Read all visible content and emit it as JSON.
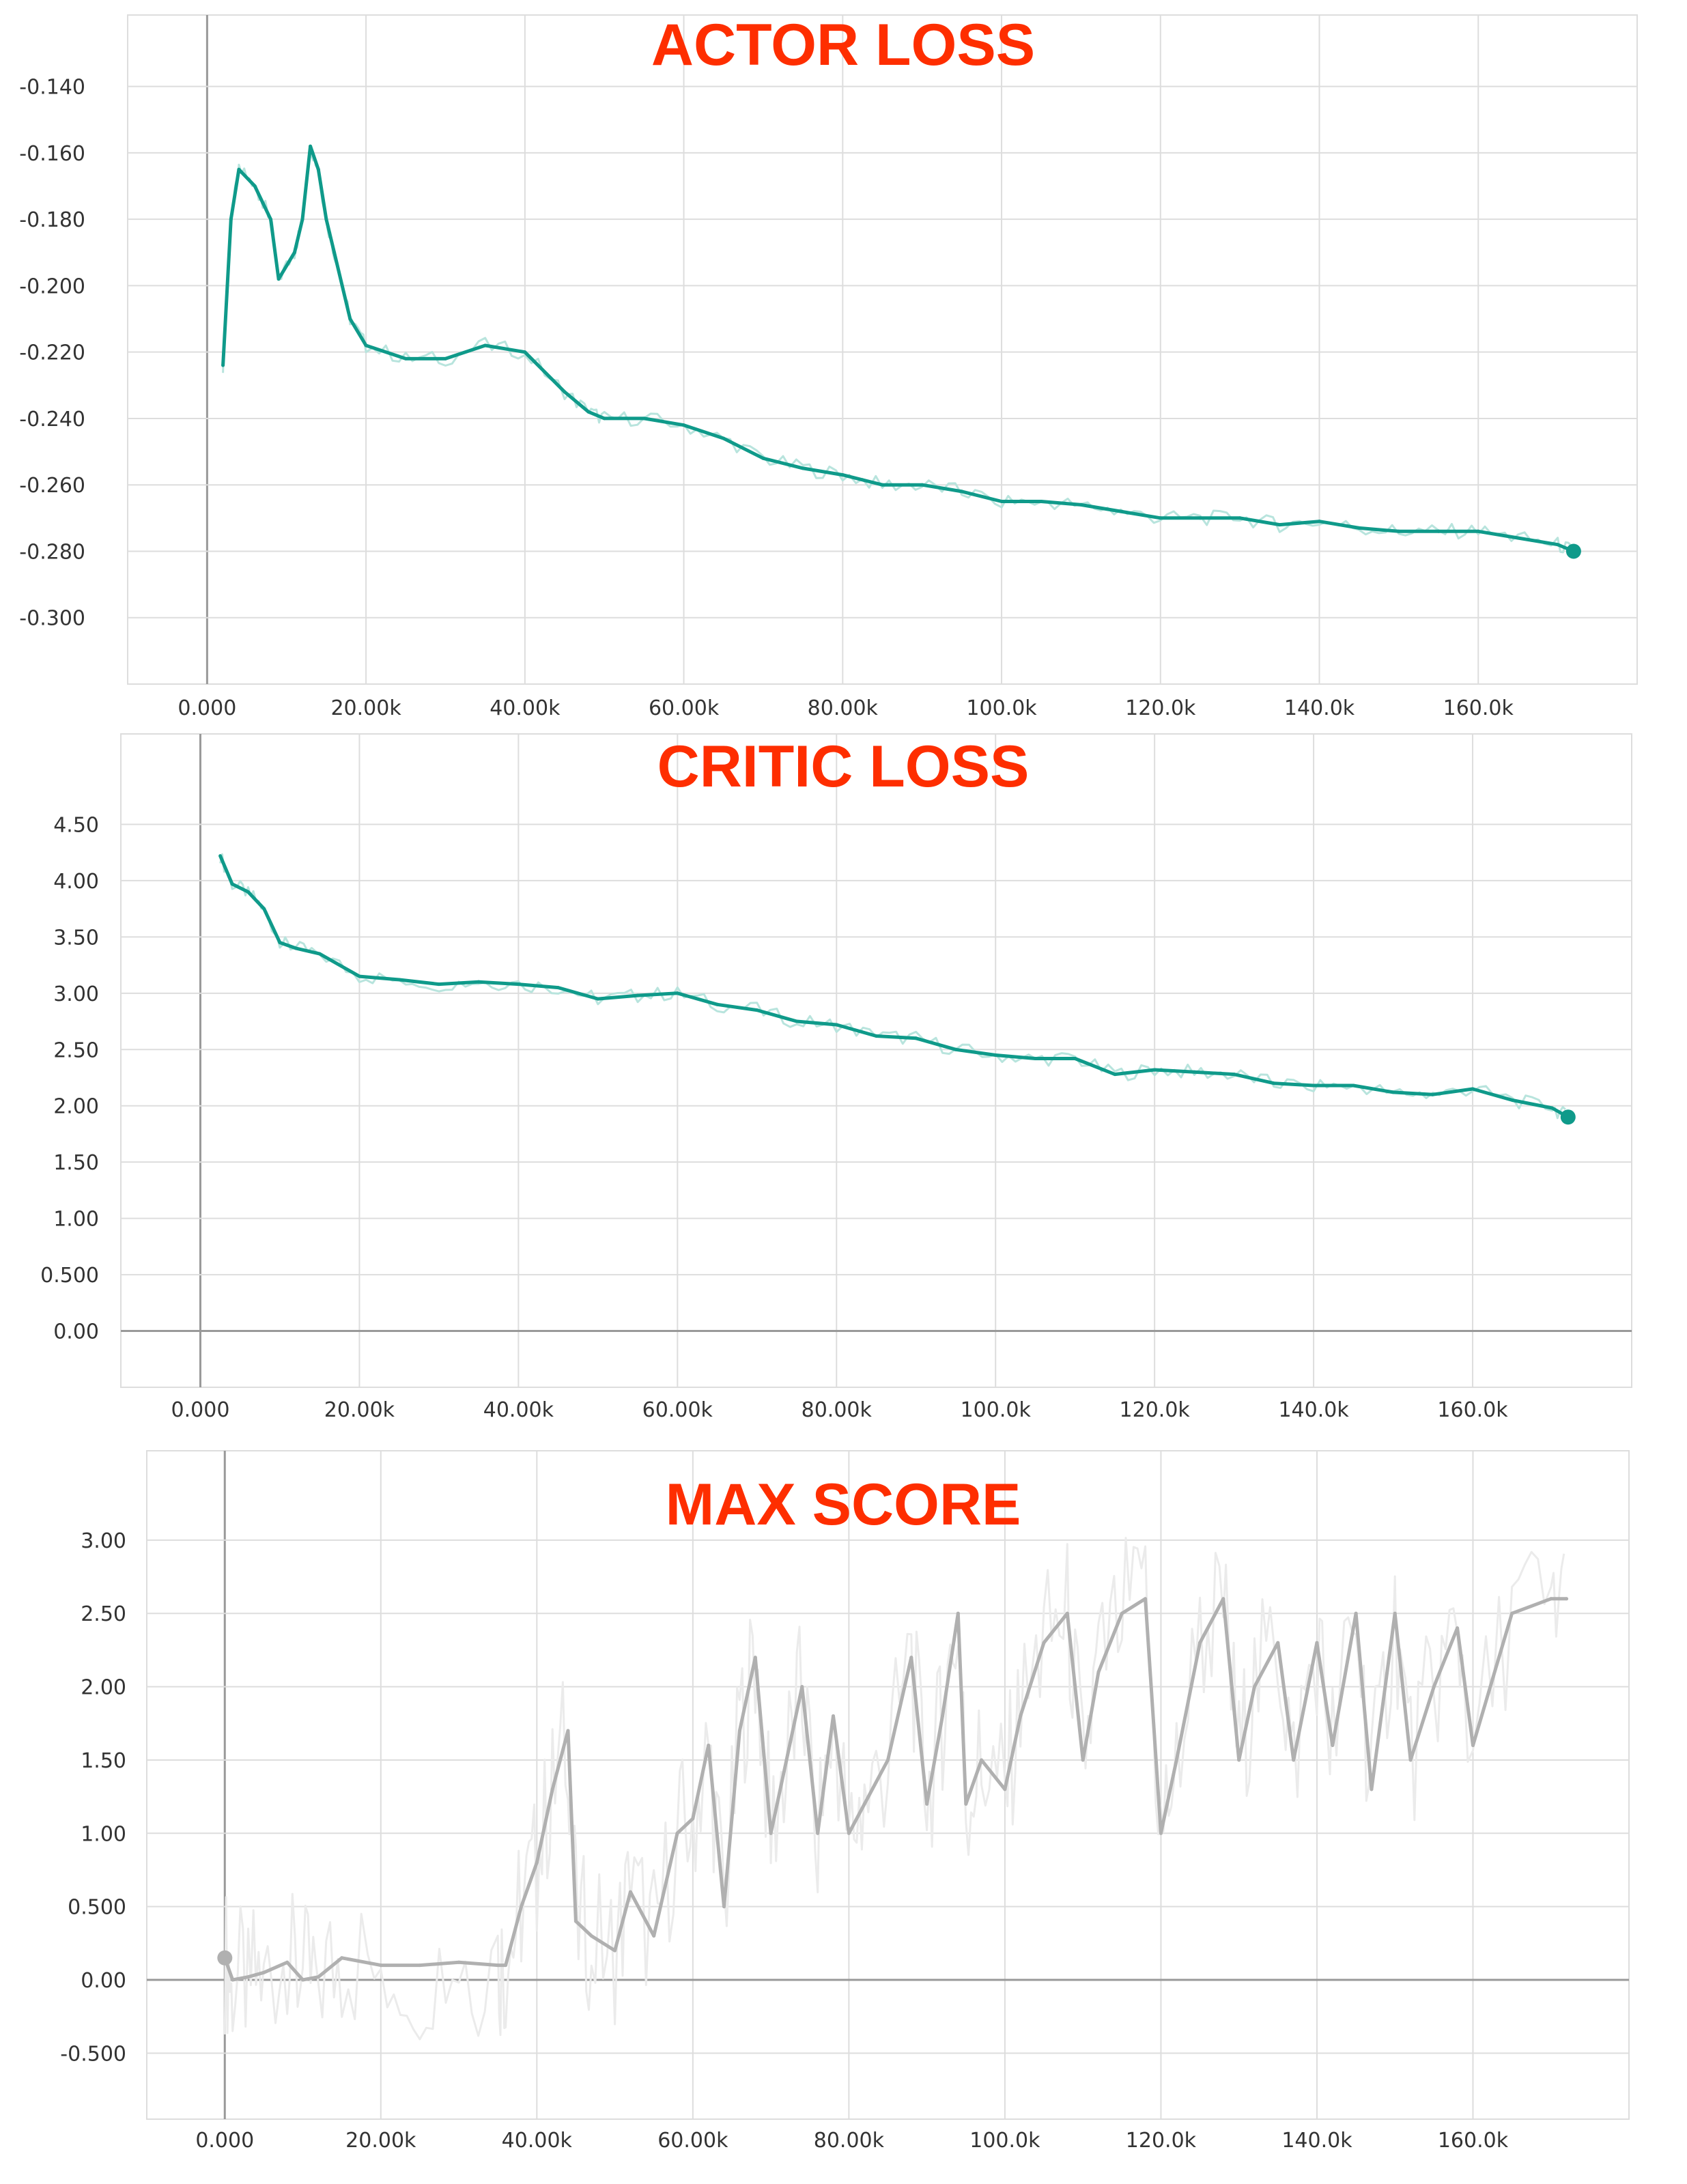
{
  "colors": {
    "teal": "#0f9a8a",
    "teal_raw": "#b8e4dd",
    "gray": "#b0b0b0",
    "gray_raw": "#ebebeb",
    "title": "#fe2e00",
    "grid": "#dddddd",
    "axis": "#999999"
  },
  "chart_data": [
    {
      "type": "line",
      "title": "ACTOR LOSS",
      "xlim": [
        -10000,
        180000
      ],
      "ylim": [
        -0.32,
        -0.13
      ],
      "xticks": [
        0,
        20000,
        40000,
        60000,
        80000,
        100000,
        120000,
        140000,
        160000
      ],
      "xtick_labels": [
        "0.000",
        "20.00k",
        "40.00k",
        "60.00k",
        "80.00k",
        "100.0k",
        "120.0k",
        "140.0k",
        "160.0k"
      ],
      "yticks": [
        -0.14,
        -0.16,
        -0.18,
        -0.2,
        -0.22,
        -0.24,
        -0.26,
        -0.28,
        -0.3
      ],
      "ytick_labels": [
        "-0.140",
        "-0.160",
        "-0.180",
        "-0.200",
        "-0.220",
        "-0.240",
        "-0.260",
        "-0.280",
        "-0.300"
      ],
      "grid": true,
      "series": [
        {
          "color": "#0f9a8a",
          "x": [
            2000,
            3000,
            4000,
            6000,
            7000,
            8000,
            9000,
            11000,
            12000,
            13000,
            14000,
            15000,
            16000,
            18000,
            20000,
            25000,
            30000,
            35000,
            40000,
            45000,
            48000,
            50000,
            55000,
            60000,
            65000,
            70000,
            75000,
            80000,
            85000,
            90000,
            95000,
            100000,
            105000,
            110000,
            115000,
            120000,
            125000,
            130000,
            135000,
            140000,
            145000,
            150000,
            155000,
            160000,
            165000,
            170000,
            172000
          ],
          "y": [
            -0.224,
            -0.18,
            -0.165,
            -0.17,
            -0.175,
            -0.18,
            -0.198,
            -0.19,
            -0.18,
            -0.158,
            -0.165,
            -0.18,
            -0.19,
            -0.21,
            -0.218,
            -0.222,
            -0.222,
            -0.218,
            -0.22,
            -0.232,
            -0.238,
            -0.24,
            -0.24,
            -0.242,
            -0.246,
            -0.252,
            -0.255,
            -0.257,
            -0.26,
            -0.26,
            -0.262,
            -0.265,
            -0.265,
            -0.266,
            -0.268,
            -0.27,
            -0.27,
            -0.27,
            -0.272,
            -0.271,
            -0.273,
            -0.274,
            -0.274,
            -0.274,
            -0.276,
            -0.278,
            -0.28
          ]
        }
      ]
    },
    {
      "type": "line",
      "title": "CRITIC LOSS",
      "xlim": [
        -10000,
        180000
      ],
      "ylim": [
        -0.5,
        5.0
      ],
      "xticks": [
        0,
        20000,
        40000,
        60000,
        80000,
        100000,
        120000,
        140000,
        160000
      ],
      "xtick_labels": [
        "0.000",
        "20.00k",
        "40.00k",
        "60.00k",
        "80.00k",
        "100.0k",
        "120.0k",
        "140.0k",
        "160.0k"
      ],
      "yticks": [
        4.5,
        4.0,
        3.5,
        3.0,
        2.5,
        2.0,
        1.5,
        1.0,
        0.5,
        0.0
      ],
      "ytick_labels": [
        "4.50",
        "4.00",
        "3.50",
        "3.00",
        "2.50",
        "2.00",
        "1.50",
        "1.00",
        "0.500",
        "0.00"
      ],
      "grid": true,
      "series": [
        {
          "color": "#0f9a8a",
          "x": [
            2500,
            4000,
            6000,
            8000,
            10000,
            12000,
            15000,
            20000,
            25000,
            30000,
            35000,
            40000,
            45000,
            50000,
            55000,
            60000,
            65000,
            70000,
            75000,
            80000,
            85000,
            90000,
            95000,
            100000,
            105000,
            110000,
            115000,
            120000,
            125000,
            130000,
            135000,
            140000,
            145000,
            150000,
            155000,
            160000,
            165000,
            170000,
            172000
          ],
          "y": [
            4.22,
            3.97,
            3.9,
            3.75,
            3.45,
            3.4,
            3.35,
            3.15,
            3.12,
            3.08,
            3.1,
            3.08,
            3.05,
            2.95,
            2.98,
            3.0,
            2.9,
            2.85,
            2.75,
            2.72,
            2.62,
            2.6,
            2.5,
            2.45,
            2.42,
            2.42,
            2.28,
            2.32,
            2.3,
            2.28,
            2.2,
            2.18,
            2.18,
            2.12,
            2.1,
            2.15,
            2.05,
            1.98,
            1.9
          ]
        }
      ]
    },
    {
      "type": "line",
      "title": "MAX SCORE",
      "xlim": [
        -10000,
        180000
      ],
      "ylim": [
        -0.95,
        3.4
      ],
      "xticks": [
        0,
        20000,
        40000,
        60000,
        80000,
        100000,
        120000,
        140000,
        160000
      ],
      "xtick_labels": [
        "0.000",
        "20.00k",
        "40.00k",
        "60.00k",
        "80.00k",
        "100.0k",
        "120.0k",
        "140.0k",
        "160.0k"
      ],
      "yticks": [
        3.0,
        2.5,
        2.0,
        1.5,
        1.0,
        0.5,
        0.0,
        -0.5
      ],
      "ytick_labels": [
        "3.00",
        "2.50",
        "2.00",
        "1.50",
        "1.00",
        "0.500",
        "0.00",
        "-0.500"
      ],
      "grid": true,
      "series": [
        {
          "color": "#b0b0b0",
          "x": [
            0,
            1000,
            3000,
            5000,
            8000,
            10000,
            12000,
            15000,
            20000,
            25000,
            30000,
            35000,
            36000,
            38000,
            40000,
            42000,
            44000,
            45000,
            47000,
            50000,
            52000,
            55000,
            58000,
            60000,
            62000,
            64000,
            66000,
            68000,
            70000,
            72000,
            74000,
            76000,
            78000,
            80000,
            82000,
            85000,
            88000,
            90000,
            92000,
            94000,
            95000,
            97000,
            100000,
            102000,
            105000,
            108000,
            110000,
            112000,
            115000,
            118000,
            120000,
            122000,
            125000,
            128000,
            130000,
            132000,
            135000,
            137000,
            140000,
            142000,
            145000,
            147000,
            150000,
            152000,
            155000,
            158000,
            160000,
            165000,
            170000,
            172000
          ],
          "y": [
            0.15,
            0.0,
            0.02,
            0.05,
            0.12,
            0.0,
            0.02,
            0.15,
            0.1,
            0.1,
            0.12,
            0.1,
            0.1,
            0.5,
            0.8,
            1.3,
            1.7,
            0.4,
            0.3,
            0.2,
            0.6,
            0.3,
            1.0,
            1.1,
            1.6,
            0.5,
            1.7,
            2.2,
            1.0,
            1.5,
            2.0,
            1.0,
            1.8,
            1.0,
            1.2,
            1.5,
            2.2,
            1.2,
            1.8,
            2.5,
            1.2,
            1.5,
            1.3,
            1.8,
            2.3,
            2.5,
            1.5,
            2.1,
            2.5,
            2.6,
            1.0,
            1.5,
            2.3,
            2.6,
            1.5,
            2.0,
            2.3,
            1.5,
            2.3,
            1.6,
            2.5,
            1.3,
            2.5,
            1.5,
            2.0,
            2.4,
            1.6,
            2.5,
            2.6,
            2.6
          ]
        }
      ]
    }
  ]
}
